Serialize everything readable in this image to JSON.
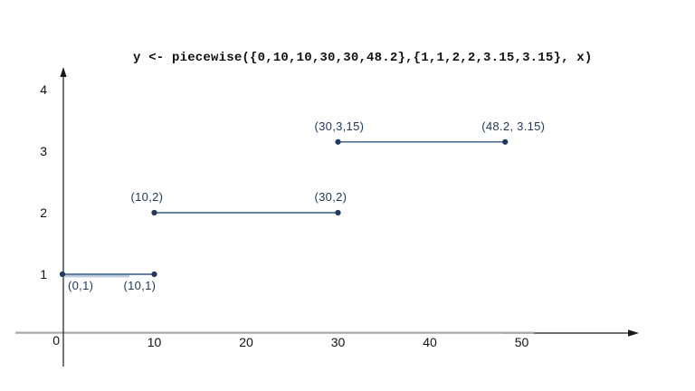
{
  "chart_data": {
    "type": "line",
    "subtype": "piecewise-constant-segments",
    "title": "y <- piecewise({0,10,10,30,30,48.2},{1,1,2,2,3.15,3.15}, x)",
    "segments": [
      {
        "points": [
          {
            "x": 0,
            "y": 1,
            "label": "(0,1)",
            "label_pos": "below-right"
          },
          {
            "x": 10,
            "y": 1,
            "label": "(10,1)",
            "label_pos": "below"
          }
        ]
      },
      {
        "points": [
          {
            "x": 10,
            "y": 2,
            "label": "(10,2)",
            "label_pos": "above"
          },
          {
            "x": 30,
            "y": 2,
            "label": "(30,2)",
            "label_pos": "above"
          }
        ]
      },
      {
        "points": [
          {
            "x": 30,
            "y": 3.15,
            "label": "(30,3,15)",
            "label_pos": "above"
          },
          {
            "x": 48.2,
            "y": 3.15,
            "label": "(48.2, 3.15)",
            "label_pos": "above"
          }
        ]
      }
    ],
    "x_ticks": [
      10,
      20,
      30,
      40,
      50
    ],
    "y_ticks": [
      1,
      2,
      3,
      4
    ],
    "origin_label": "0",
    "xlim": [
      0,
      62
    ],
    "ylim": [
      0,
      4.4
    ],
    "grid": false,
    "legend": false,
    "axes": {
      "x_arrow": true,
      "y_arrow": true
    },
    "extra_underline": {
      "x1": 0,
      "x2": 7.3,
      "y": 0.97
    },
    "colors": {
      "segment_line": "#2e5a8c",
      "point": "#1f3864",
      "point_label": "#1f3864",
      "axis_black": "#1a1a1a",
      "axis_gray": "#a9a9a9",
      "tick_label": "#111111",
      "underline": "#bcc9da",
      "background": "#ffffff"
    }
  }
}
